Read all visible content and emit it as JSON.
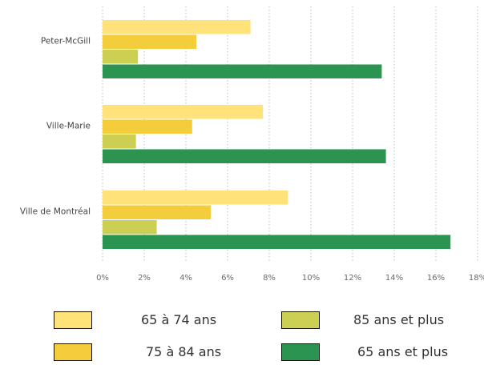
{
  "chart_data": {
    "type": "bar",
    "orientation": "horizontal",
    "categories": [
      "Peter-McGill",
      "Ville-Marie",
      "Ville de Montréal"
    ],
    "series": [
      {
        "name": "65 à 74 ans",
        "color": "#FFE27A",
        "values": [
          7.1,
          7.7,
          8.9
        ]
      },
      {
        "name": "75 à 84 ans",
        "color": "#F3CD3C",
        "values": [
          4.5,
          4.3,
          5.2
        ]
      },
      {
        "name": "85 ans et plus",
        "color": "#CDCF52",
        "values": [
          1.7,
          1.6,
          2.6
        ]
      },
      {
        "name": "65 ans et plus",
        "color": "#2A9450",
        "values": [
          13.4,
          13.6,
          16.7
        ]
      }
    ],
    "xlim": [
      0,
      18
    ],
    "x_ticks": [
      "0%",
      "2%",
      "4%",
      "6%",
      "8%",
      "10%",
      "12%",
      "14%",
      "16%",
      "18%"
    ],
    "grid": "vertical dotted",
    "legend_placement": "bottom"
  },
  "legend": [
    {
      "label": "65 à 74 ans",
      "color": "#FFE27A"
    },
    {
      "label": "75 à 84 ans",
      "color": "#F3CD3C"
    },
    {
      "label": "85 ans et plus",
      "color": "#CDCF52"
    },
    {
      "label": "65 ans et plus",
      "color": "#2A9450"
    }
  ]
}
